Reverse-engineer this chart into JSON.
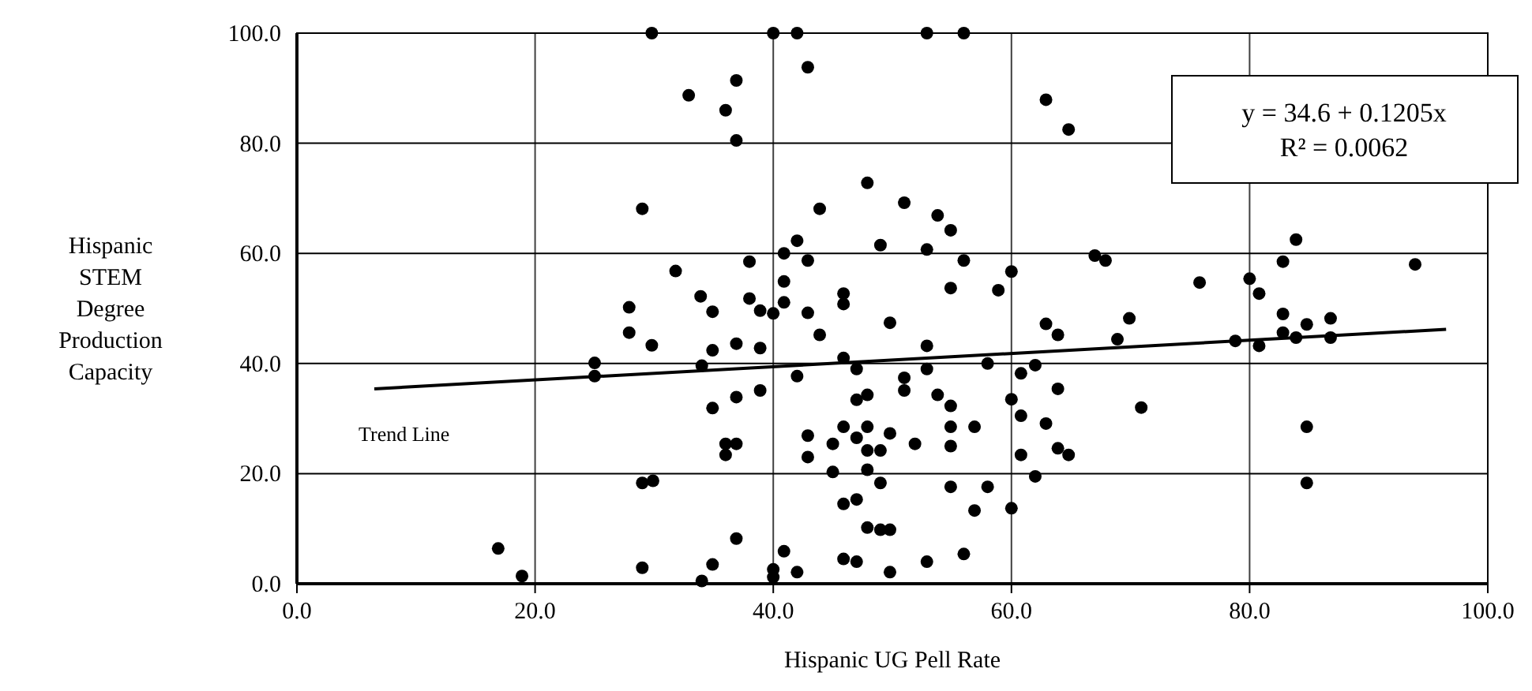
{
  "chart_data": {
    "type": "scatter",
    "xlabel": "Hispanic UG Pell Rate",
    "ylabel": "Hispanic STEM Degree Production Capacity",
    "xlim": [
      0,
      100
    ],
    "ylim": [
      0,
      100
    ],
    "xticks": [
      {
        "value": 0,
        "label": "0.0"
      },
      {
        "value": 20,
        "label": "20.0"
      },
      {
        "value": 40,
        "label": "40.0"
      },
      {
        "value": 60,
        "label": "60.0"
      },
      {
        "value": 80,
        "label": "80.0"
      },
      {
        "value": 100,
        "label": "100.0"
      }
    ],
    "yticks": [
      {
        "value": 0,
        "label": "0.0"
      },
      {
        "value": 20,
        "label": "20.0"
      },
      {
        "value": 40,
        "label": "40.0"
      },
      {
        "value": 60,
        "label": "60.0"
      },
      {
        "value": 80,
        "label": "80.0"
      },
      {
        "value": 100,
        "label": "100.0"
      }
    ],
    "grid": true,
    "marker": "circle",
    "series": [
      {
        "color": "#000000",
        "x": [
          29.8,
          40.0,
          42.0,
          52.9,
          56.0,
          32.9,
          29.0,
          31.8,
          33.9,
          27.9,
          27.9,
          29.8,
          25.0,
          25.0,
          34.0,
          29.0,
          29.9,
          16.9,
          18.9,
          29.0,
          34.0,
          42.9,
          36.9,
          36.0,
          36.9,
          62.9,
          64.8,
          47.9,
          43.9,
          51.0,
          53.8,
          54.9,
          42.0,
          49.0,
          52.9,
          40.9,
          42.9,
          38.0,
          56.0,
          60.0,
          67.0,
          67.9,
          40.9,
          54.9,
          58.9,
          45.9,
          45.9,
          38.0,
          40.9,
          34.9,
          38.9,
          40.0,
          42.9,
          49.8,
          62.9,
          63.9,
          43.9,
          34.9,
          36.9,
          38.9,
          52.9,
          45.9,
          47.0,
          42.0,
          52.9,
          51.0,
          58.0,
          60.8,
          62.0,
          51.0,
          36.9,
          38.9,
          34.9,
          47.0,
          47.9,
          53.8,
          54.9,
          60.0,
          63.9,
          60.8,
          62.9,
          45.9,
          47.9,
          47.0,
          49.8,
          54.9,
          56.9,
          42.9,
          45.0,
          51.9,
          54.9,
          36.0,
          36.9,
          36.0,
          47.9,
          49.0,
          42.9,
          60.8,
          63.9,
          64.8,
          45.0,
          47.9,
          49.0,
          54.9,
          58.0,
          62.0,
          45.9,
          47.0,
          56.9,
          60.0,
          47.9,
          49.0,
          49.8,
          36.9,
          40.9,
          34.9,
          56.0,
          45.9,
          47.0,
          52.9,
          40.0,
          40.0,
          42.0,
          49.8,
          83.9,
          82.8,
          93.9,
          75.8,
          80.0,
          80.8,
          82.8,
          84.8,
          86.8,
          69.9,
          68.9,
          78.8,
          80.8,
          82.8,
          83.9,
          86.8,
          70.9,
          84.8,
          84.8
        ],
        "values": [
          100,
          100,
          100,
          100,
          100,
          88.7,
          68.1,
          56.8,
          52.2,
          50.2,
          45.6,
          43.3,
          40.1,
          37.7,
          39.6,
          18.3,
          18.7,
          6.4,
          1.4,
          2.9,
          0.5,
          93.8,
          91.4,
          86.0,
          80.5,
          87.9,
          82.5,
          72.8,
          68.1,
          69.2,
          66.9,
          64.2,
          62.3,
          61.5,
          60.7,
          60.0,
          58.7,
          58.5,
          58.7,
          56.7,
          59.6,
          58.7,
          54.9,
          53.7,
          53.3,
          52.7,
          50.8,
          51.8,
          51.1,
          49.4,
          49.6,
          49.1,
          49.2,
          47.4,
          47.2,
          45.2,
          45.2,
          42.4,
          43.6,
          42.8,
          43.2,
          41.0,
          39.0,
          37.7,
          39.0,
          37.4,
          40.0,
          38.2,
          39.7,
          35.1,
          33.9,
          35.1,
          31.9,
          33.4,
          34.3,
          34.3,
          32.3,
          33.5,
          35.4,
          30.5,
          29.1,
          28.5,
          28.5,
          26.5,
          27.3,
          28.5,
          28.5,
          26.9,
          25.4,
          25.4,
          25.0,
          25.4,
          25.4,
          23.4,
          24.2,
          24.2,
          23.0,
          23.4,
          24.6,
          23.4,
          20.3,
          20.7,
          18.3,
          17.6,
          17.6,
          19.5,
          14.5,
          15.3,
          13.3,
          13.7,
          10.2,
          9.8,
          9.8,
          8.2,
          5.9,
          3.5,
          5.4,
          4.5,
          4.0,
          4.0,
          2.6,
          1.2,
          2.1,
          2.1,
          62.5,
          58.5,
          58.0,
          54.7,
          55.4,
          52.7,
          49.0,
          47.1,
          48.2,
          48.2,
          44.4,
          44.1,
          43.2,
          45.6,
          44.7,
          44.7,
          32.0,
          28.5,
          18.3
        ]
      },
      {
        "type": "line",
        "color": "#000000",
        "marker": "none",
        "x": [
          6.5,
          96.5
        ],
        "values": [
          35.4,
          46.2
        ]
      }
    ],
    "annotations": [
      {
        "text": "Trend Line",
        "x": 6.5,
        "y": 35.4
      },
      "y = 34.6 + 0.1205x",
      "R² = 0.0062"
    ]
  }
}
